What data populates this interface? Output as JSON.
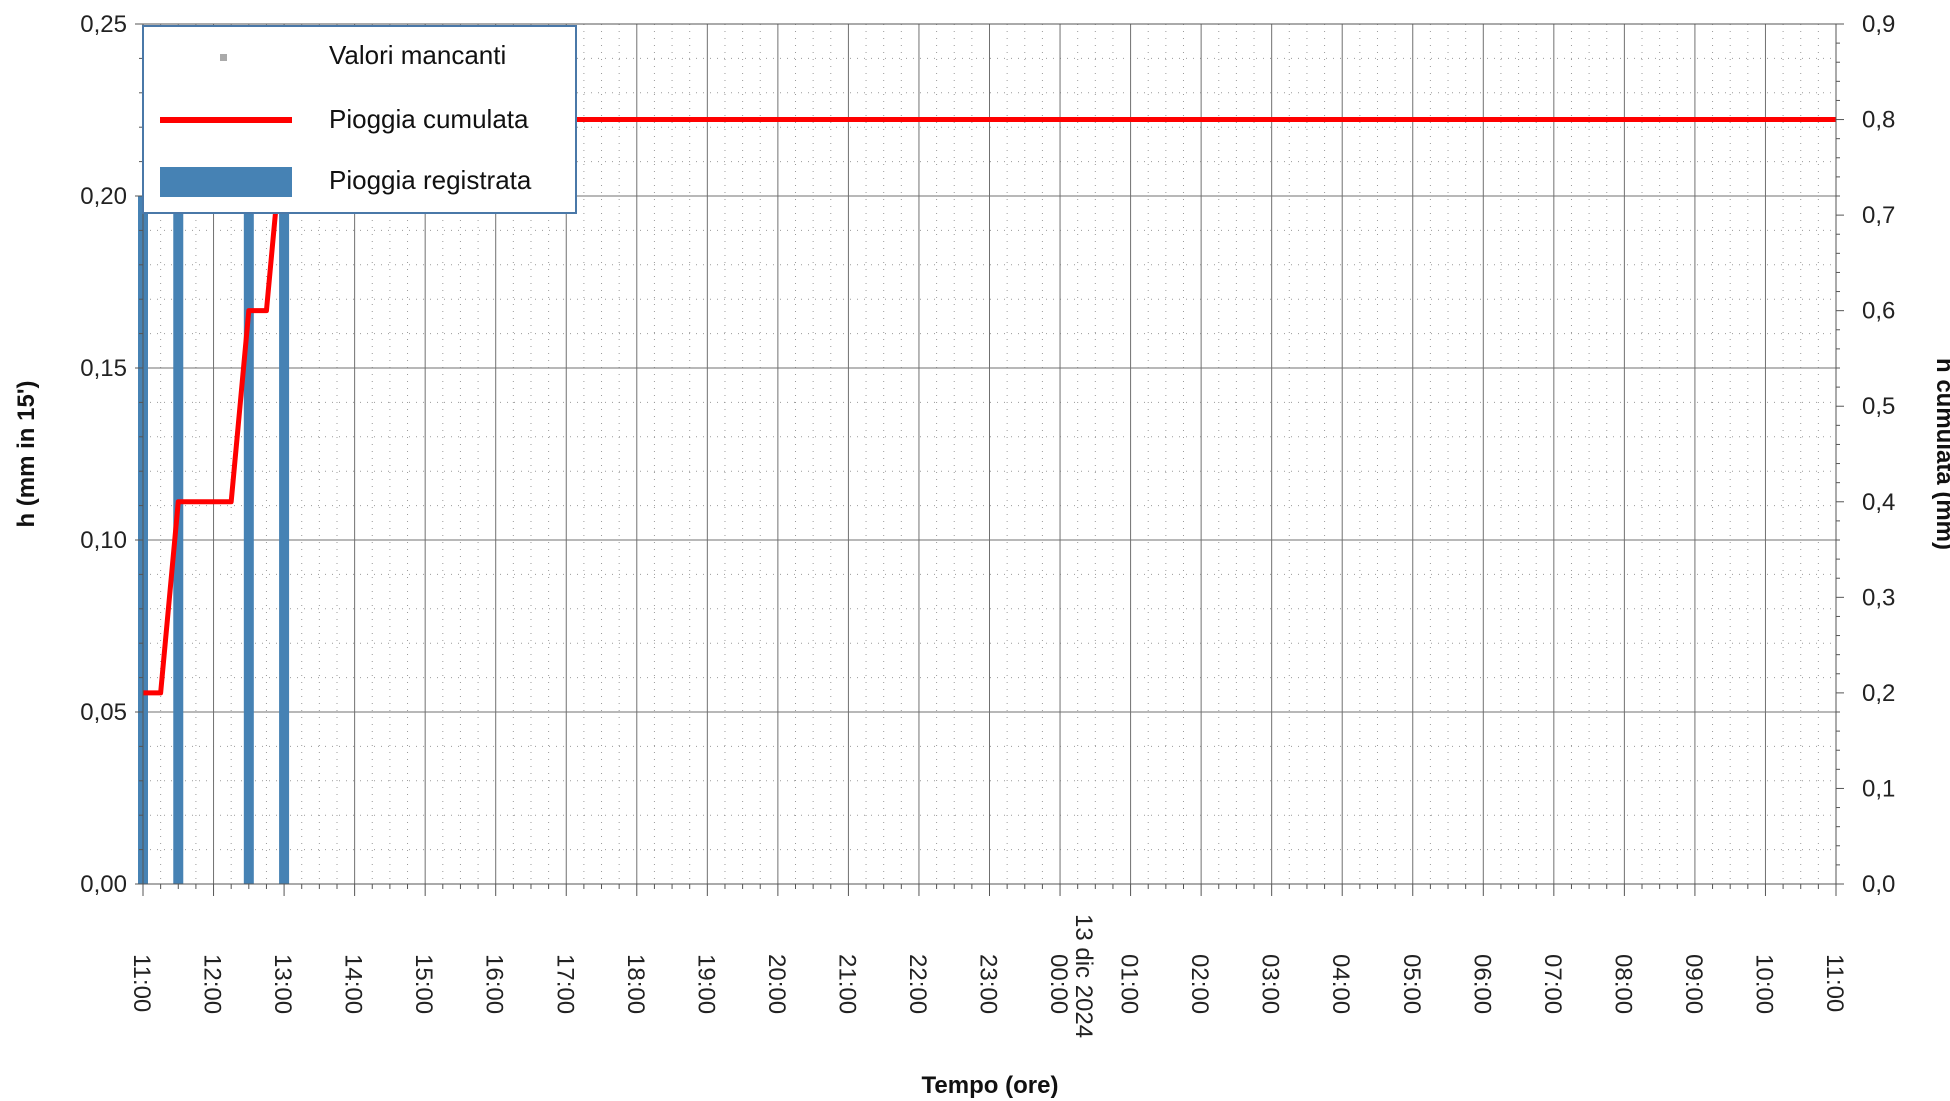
{
  "chart_data": {
    "type": "bar",
    "xlabel": "Tempo (ore)",
    "ylabel_left": "h (mm in 15')",
    "ylabel_right": "h cumulata (mm)",
    "x_ticks": [
      "11:00",
      "12:00",
      "13:00",
      "14:00",
      "15:00",
      "16:00",
      "17:00",
      "18:00",
      "19:00",
      "20:00",
      "21:00",
      "22:00",
      "23:00",
      "00:00",
      "01:00",
      "02:00",
      "03:00",
      "04:00",
      "05:00",
      "06:00",
      "07:00",
      "08:00",
      "09:00",
      "10:00",
      "11:00"
    ],
    "date_label": "13 dic 2024",
    "date_label_tick_index": 13,
    "y_left": {
      "min": 0,
      "max": 0.25,
      "ticks": [
        "0,00",
        "0,05",
        "0,10",
        "0,15",
        "0,20",
        "0,25"
      ]
    },
    "y_right": {
      "min": 0,
      "max": 0.9,
      "ticks": [
        "0,0",
        "0,1",
        "0,2",
        "0,3",
        "0,4",
        "0,5",
        "0,6",
        "0,7",
        "0,8",
        "0,9"
      ]
    },
    "grid": true,
    "legend": {
      "placement": "top-left",
      "items": [
        {
          "key": "missing",
          "label": "Valori mancanti"
        },
        {
          "key": "cumulative",
          "label": "Pioggia cumulata"
        },
        {
          "key": "recorded",
          "label": "Pioggia registrata"
        }
      ]
    },
    "series": [
      {
        "name": "Pioggia registrata",
        "kind": "bar",
        "color": "#4682b4",
        "x_hours": [
          0,
          0.5,
          1.5,
          2.0
        ],
        "values": [
          0.2,
          0.2,
          0.2,
          0.2
        ]
      },
      {
        "name": "Pioggia cumulata",
        "kind": "line",
        "axis": "right",
        "color": "#ff0000",
        "points": [
          [
            0,
            0.2
          ],
          [
            0.25,
            0.2
          ],
          [
            0.5,
            0.4
          ],
          [
            1.25,
            0.4
          ],
          [
            1.5,
            0.6
          ],
          [
            1.75,
            0.6
          ],
          [
            2.0,
            0.8
          ],
          [
            24,
            0.8
          ]
        ]
      }
    ],
    "missing_color": "#aaaaaa"
  }
}
